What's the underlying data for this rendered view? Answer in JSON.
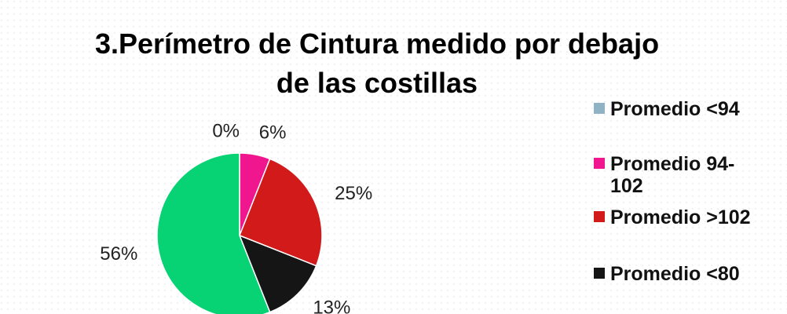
{
  "chart_data": {
    "type": "pie",
    "title": [
      "3.Perímetro de Cintura medido por debajo",
      "de las costillas"
    ],
    "categories": [
      "Promedio <94",
      "Promedio 94-102",
      "Promedio >102",
      "Promedio <80",
      null
    ],
    "values": [
      0,
      6,
      25,
      13,
      56
    ],
    "value_labels": [
      "0%",
      "6%",
      "25%",
      "13%",
      "56%"
    ],
    "colors": [
      "#8fb3c4",
      "#f0168e",
      "#d21a1a",
      "#151515",
      "#08d374"
    ],
    "legend": "right"
  }
}
